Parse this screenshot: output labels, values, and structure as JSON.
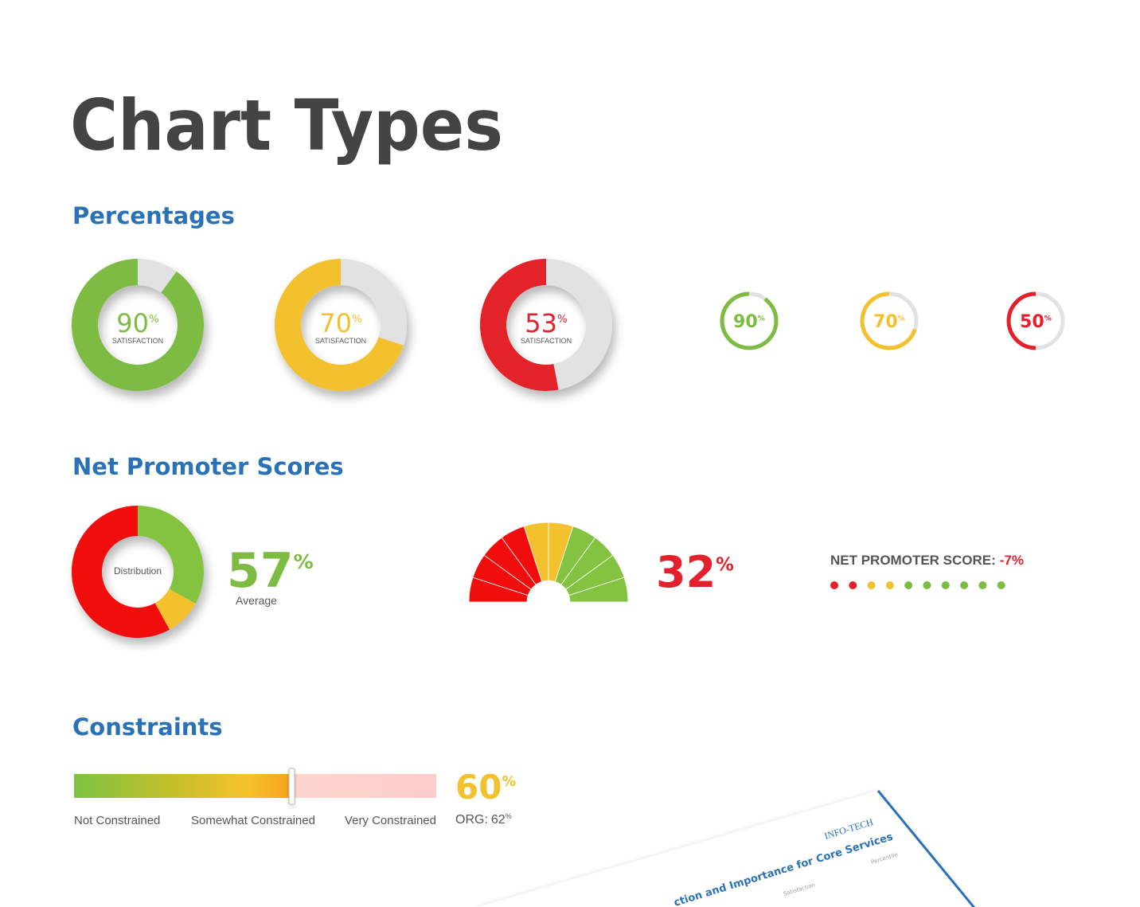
{
  "title": "Chart Types",
  "percentages": {
    "heading": "Percentages",
    "big": [
      {
        "value": 90,
        "unit": "%",
        "label": "SATISFACTION",
        "color": "#7dbb42"
      },
      {
        "value": 70,
        "unit": "%",
        "label": "SATISFACTION",
        "color": "#f3c12e"
      },
      {
        "value": 53,
        "unit": "%",
        "label": "SATISFACTION",
        "color": "#e3202b"
      }
    ],
    "small": [
      {
        "value": 90,
        "unit": "%",
        "color": "#7dbb42"
      },
      {
        "value": 70,
        "unit": "%",
        "color": "#f3c12e"
      },
      {
        "value": 50,
        "unit": "%",
        "color": "#e3202b"
      }
    ]
  },
  "nps": {
    "heading": "Net Promoter Scores",
    "distribution": {
      "label": "Distribution",
      "segments": [
        {
          "value": 33,
          "color": "#84c341"
        },
        {
          "value": 9,
          "color": "#f3c12e"
        },
        {
          "value": 58,
          "color": "#f20d0d"
        }
      ]
    },
    "average": {
      "value": 57,
      "unit": "%",
      "label": "Average",
      "color": "#7dbb42"
    },
    "gauge": {
      "value": 32,
      "unit": "%",
      "color": "#e3202b",
      "segments": [
        "#f20d0d",
        "#f20d0d",
        "#f20d0d",
        "#f20d0d",
        "#f3c12e",
        "#f3c12e",
        "#84c341",
        "#84c341",
        "#84c341",
        "#84c341"
      ]
    },
    "score": {
      "label": "NET PROMOTER SCORE:",
      "value": -7,
      "unit": "%",
      "color": "#e3202b",
      "dots": [
        "#e3202b",
        "#e3202b",
        "#f3c12e",
        "#f3c12e",
        "#7dbb42",
        "#7dbb42",
        "#7dbb42",
        "#7dbb42",
        "#7dbb42",
        "#7dbb42"
      ]
    }
  },
  "constraints": {
    "heading": "Constraints",
    "value": 60,
    "unit": "%",
    "org_label": "ORG:",
    "org_value": 62,
    "color": "#f3c12e",
    "labels": [
      "Not Constrained",
      "Somewhat Constrained",
      "Very Constrained"
    ]
  },
  "document_preview": {
    "brand": "INFO-TECH",
    "title": "ction and Importance for Core Services",
    "column": "Percentile",
    "row": "Satisfaction"
  }
}
